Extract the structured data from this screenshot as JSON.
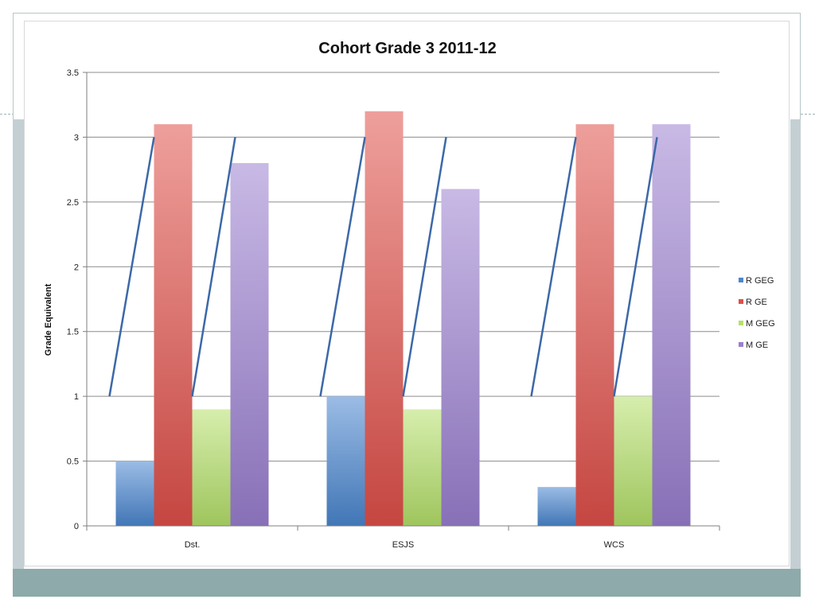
{
  "chart_data": {
    "type": "bar",
    "title": "Cohort Grade 3 2011-12",
    "xlabel": "",
    "ylabel": "Grade Equivalent",
    "ylim": [
      0,
      3.5
    ],
    "yticks": [
      "0",
      "0.5",
      "1",
      "1.5",
      "2",
      "2.5",
      "3",
      "3.5"
    ],
    "grid": true,
    "legend_position": "right",
    "categories": [
      "Dst.",
      "ESJS",
      "WCS"
    ],
    "series": [
      {
        "name": "R GEG",
        "values": [
          0.5,
          1.0,
          0.3
        ],
        "color": "#4a86cf"
      },
      {
        "name": "R GE",
        "values": [
          3.1,
          3.2,
          3.1
        ],
        "color": "#e0504a"
      },
      {
        "name": "M GEG",
        "values": [
          0.9,
          0.9,
          1.0
        ],
        "color": "#b5e06a"
      },
      {
        "name": "M GE",
        "values": [
          2.8,
          2.6,
          3.1
        ],
        "color": "#9b7fd0"
      }
    ],
    "annotations": [
      {
        "type": "line",
        "category": "Dst.",
        "from": 1.0,
        "to": 3.0
      },
      {
        "type": "line",
        "category": "Dst.",
        "from": 1.0,
        "to": 3.0
      },
      {
        "type": "line",
        "category": "ESJS",
        "from": 1.0,
        "to": 3.0
      },
      {
        "type": "line",
        "category": "ESJS",
        "from": 1.0,
        "to": 3.0
      },
      {
        "type": "line",
        "category": "WCS",
        "from": 1.0,
        "to": 3.0
      },
      {
        "type": "line",
        "category": "WCS",
        "from": 1.0,
        "to": 3.0
      }
    ]
  }
}
